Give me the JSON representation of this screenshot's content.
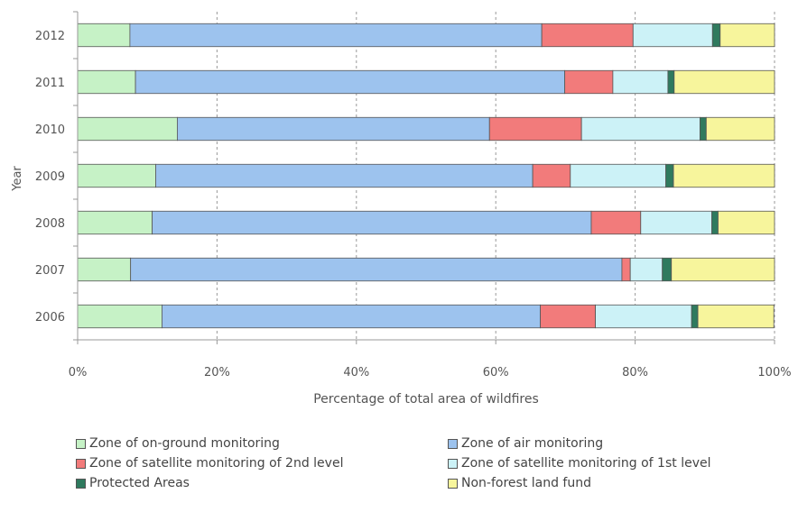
{
  "chart_data": {
    "type": "bar",
    "orientation": "horizontal",
    "stacked": "percent",
    "categories": [
      "2012",
      "2011",
      "2010",
      "2009",
      "2008",
      "2007",
      "2006"
    ],
    "series": [
      {
        "name": "Zone of on-ground monitoring",
        "color": "#c6f2c6",
        "values": [
          7.5,
          8.3,
          14.3,
          11.2,
          10.7,
          7.6,
          12.1
        ]
      },
      {
        "name": "Zone of air monitoring",
        "color": "#9dc3ee",
        "values": [
          59.1,
          61.6,
          44.8,
          54.1,
          63.0,
          70.5,
          54.3
        ]
      },
      {
        "name": "Zone of satellite monitoring of 2nd level",
        "color": "#f27b7b",
        "values": [
          13.1,
          6.9,
          13.2,
          5.4,
          7.1,
          1.2,
          7.9
        ]
      },
      {
        "name": "Zone of satellite monitoring of 1st level",
        "color": "#ccf2f7",
        "values": [
          11.4,
          7.9,
          17.0,
          13.7,
          10.2,
          4.6,
          13.8
        ]
      },
      {
        "name": "Protected Areas",
        "color": "#2f7a5e",
        "values": [
          1.1,
          0.9,
          0.9,
          1.1,
          0.9,
          1.3,
          0.9
        ]
      },
      {
        "name": "Non-forest land fund",
        "color": "#f7f59c",
        "values": [
          7.8,
          14.4,
          9.8,
          14.5,
          8.1,
          14.8,
          10.9
        ]
      }
    ],
    "xlabel": "Percentage of total area of wildfires",
    "ylabel": "Year",
    "xlim": [
      0,
      100
    ],
    "xticks": [
      "0%",
      "20%",
      "40%",
      "60%",
      "80%",
      "100%"
    ],
    "grid": "vertical dashed",
    "legend_position": "bottom"
  }
}
